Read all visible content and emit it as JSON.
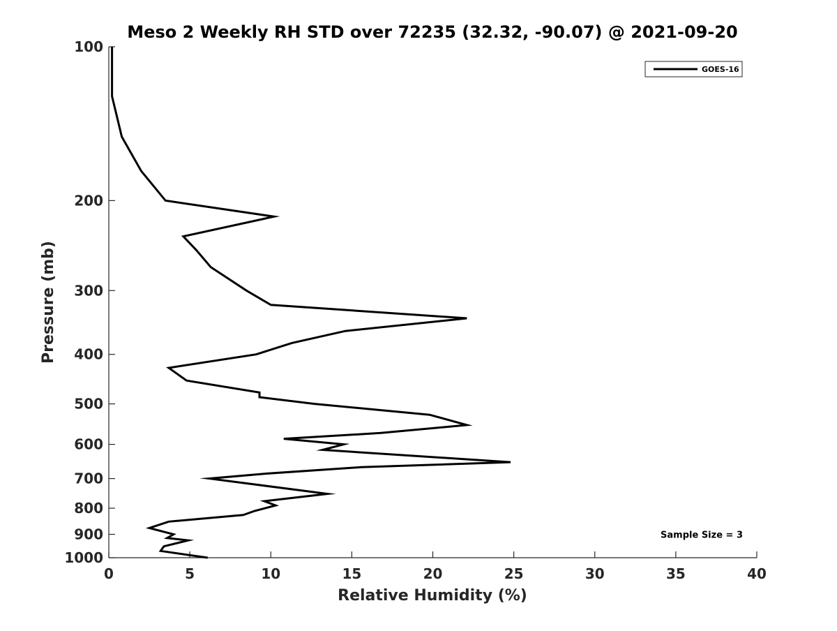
{
  "chart_data": {
    "type": "line",
    "title": "Meso 2 Weekly RH STD over 72235 (32.32, -90.07) @ 2021-09-20",
    "xlabel": "Relative Humidity (%)",
    "ylabel": "Pressure (mb)",
    "xlim": [
      0,
      40
    ],
    "ylim": [
      100,
      1000
    ],
    "y_scale": "log",
    "y_reversed": true,
    "x_ticks": [
      0,
      5,
      10,
      15,
      20,
      25,
      30,
      35,
      40
    ],
    "x_tick_labels": [
      "0",
      "5",
      "10",
      "15",
      "20",
      "25",
      "30",
      "35",
      "40"
    ],
    "y_ticks": [
      100,
      200,
      300,
      400,
      500,
      600,
      700,
      800,
      900,
      1000
    ],
    "y_tick_labels": [
      "100",
      "200",
      "300",
      "400",
      "500",
      "600",
      "700",
      "800",
      "900",
      "1000"
    ],
    "grid": false,
    "legend_position": "top-right",
    "series": [
      {
        "name": "GOES-16",
        "color": "#000000",
        "points": [
          [
            0.2,
            100
          ],
          [
            0.2,
            125
          ],
          [
            0.8,
            150
          ],
          [
            2.0,
            175
          ],
          [
            3.5,
            200
          ],
          [
            10.2,
            215
          ],
          [
            4.6,
            235
          ],
          [
            5.4,
            250
          ],
          [
            6.3,
            270
          ],
          [
            8.5,
            300
          ],
          [
            10.0,
            320
          ],
          [
            22.1,
            340
          ],
          [
            14.6,
            360
          ],
          [
            11.3,
            380
          ],
          [
            9.1,
            400
          ],
          [
            3.7,
            425
          ],
          [
            4.8,
            450
          ],
          [
            9.3,
            475
          ],
          [
            9.3,
            485
          ],
          [
            12.7,
            500
          ],
          [
            19.8,
            525
          ],
          [
            22.1,
            550
          ],
          [
            16.8,
            570
          ],
          [
            10.8,
            585
          ],
          [
            14.5,
            600
          ],
          [
            13.2,
            615
          ],
          [
            24.8,
            650
          ],
          [
            15.6,
            665
          ],
          [
            9.6,
            685
          ],
          [
            6.2,
            700
          ],
          [
            13.5,
            750
          ],
          [
            9.6,
            775
          ],
          [
            10.3,
            790
          ],
          [
            9.0,
            810
          ],
          [
            8.3,
            825
          ],
          [
            3.7,
            850
          ],
          [
            2.5,
            875
          ],
          [
            4.0,
            900
          ],
          [
            3.6,
            915
          ],
          [
            4.9,
            925
          ],
          [
            3.4,
            950
          ],
          [
            3.2,
            970
          ],
          [
            6.1,
            1000
          ]
        ]
      }
    ],
    "annotations": [
      {
        "text": "Sample Size = 3",
        "x": 36.6,
        "y": 900
      }
    ]
  }
}
